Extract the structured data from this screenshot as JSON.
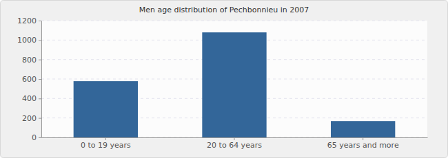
{
  "chart_data": {
    "type": "bar",
    "title": "Men age distribution of Pechbonnieu in 2007",
    "categories": [
      "0 to 19 years",
      "20 to 64 years",
      "65 years and more"
    ],
    "values": [
      578,
      1079,
      168
    ],
    "color": "#336699",
    "ylim": [
      0,
      1200
    ],
    "yticks": [
      0,
      200,
      400,
      600,
      800,
      1000,
      1200
    ],
    "grid": true
  }
}
